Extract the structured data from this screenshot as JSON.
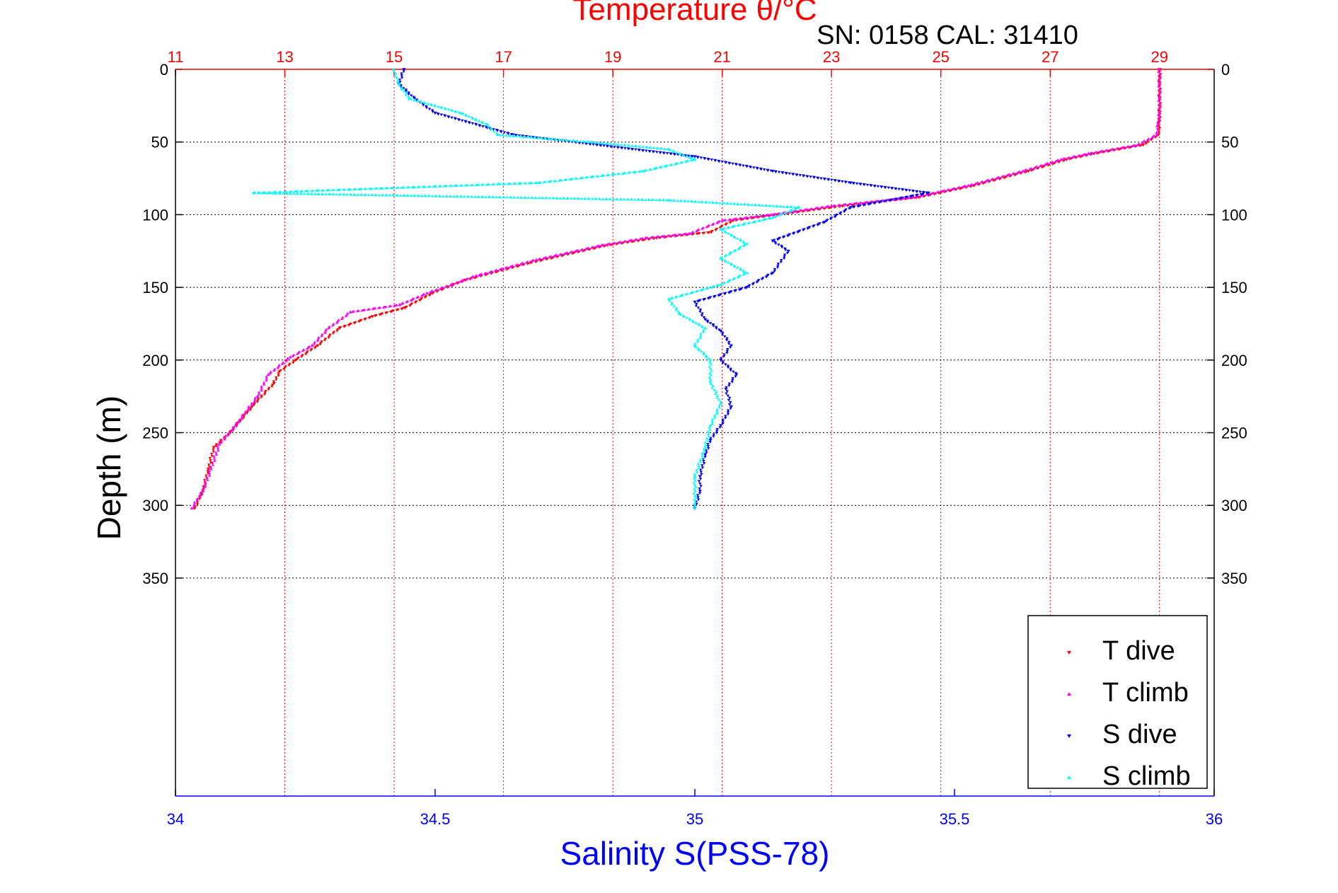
{
  "chart_data": {
    "type": "scatter",
    "title": "Temperature θ/°C",
    "subtitle": "SN: 0158  CAL: 31410",
    "xlabel_top": "Temperature θ/°C",
    "xlabel_bottom": "Salinity S(PSS-78)",
    "ylabel": "Depth (m)",
    "temperature_axis": {
      "range": [
        11,
        30
      ],
      "ticks": [
        "11",
        "13",
        "15",
        "17",
        "19",
        "21",
        "23",
        "25",
        "27",
        "29"
      ]
    },
    "salinity_axis": {
      "range": [
        34,
        36
      ],
      "ticks": [
        "34",
        "34.5",
        "35",
        "35.5",
        "36"
      ]
    },
    "depth_axis": {
      "range": [
        0,
        500
      ],
      "reversed": true,
      "ticks": [
        "0",
        "50",
        "100",
        "150",
        "200",
        "250",
        "300",
        "350"
      ]
    },
    "grid": true,
    "legend_position": "bottom-right",
    "series": [
      {
        "name": "T dive",
        "axis": "temperature",
        "color": "#ff0000",
        "marker": "triangle-down",
        "points": [
          [
            29.0,
            0
          ],
          [
            29.0,
            10
          ],
          [
            29.0,
            20
          ],
          [
            29.0,
            30
          ],
          [
            28.98,
            45
          ],
          [
            28.7,
            52
          ],
          [
            27.8,
            58
          ],
          [
            27.3,
            62
          ],
          [
            26.6,
            70
          ],
          [
            25.6,
            80
          ],
          [
            24.6,
            88
          ],
          [
            23.2,
            94
          ],
          [
            22.0,
            100
          ],
          [
            21.2,
            104
          ],
          [
            20.8,
            112
          ],
          [
            19.8,
            116
          ],
          [
            18.9,
            121
          ],
          [
            17.5,
            133
          ],
          [
            16.3,
            145
          ],
          [
            15.7,
            154
          ],
          [
            15.2,
            164
          ],
          [
            14.6,
            170
          ],
          [
            14.0,
            178
          ],
          [
            13.6,
            190
          ],
          [
            13.2,
            200
          ],
          [
            12.9,
            208
          ],
          [
            12.8,
            216
          ],
          [
            12.4,
            232
          ],
          [
            12.0,
            250
          ],
          [
            11.7,
            260
          ],
          [
            11.6,
            275
          ],
          [
            11.5,
            290
          ],
          [
            11.35,
            302
          ]
        ]
      },
      {
        "name": "T climb",
        "axis": "temperature",
        "color": "#ff00ff",
        "marker": "triangle-up",
        "points": [
          [
            29.0,
            0
          ],
          [
            29.0,
            10
          ],
          [
            29.0,
            20
          ],
          [
            29.0,
            30
          ],
          [
            28.95,
            45
          ],
          [
            28.6,
            52
          ],
          [
            27.7,
            58
          ],
          [
            27.2,
            62
          ],
          [
            26.5,
            70
          ],
          [
            25.5,
            80
          ],
          [
            24.5,
            88
          ],
          [
            23.0,
            94
          ],
          [
            21.9,
            100
          ],
          [
            21.0,
            104
          ],
          [
            20.4,
            113
          ],
          [
            19.6,
            116
          ],
          [
            18.8,
            121
          ],
          [
            17.6,
            131
          ],
          [
            16.5,
            142
          ],
          [
            15.6,
            154
          ],
          [
            15.1,
            162
          ],
          [
            14.2,
            167
          ],
          [
            13.8,
            178
          ],
          [
            13.5,
            190
          ],
          [
            13.1,
            198
          ],
          [
            12.7,
            210
          ],
          [
            12.5,
            225
          ],
          [
            12.1,
            245
          ],
          [
            11.8,
            258
          ],
          [
            11.65,
            275
          ],
          [
            11.5,
            290
          ],
          [
            11.3,
            302
          ]
        ]
      },
      {
        "name": "S dive",
        "axis": "salinity",
        "color": "#0000ff",
        "marker": "triangle-down",
        "points": [
          [
            34.44,
            0
          ],
          [
            34.43,
            10
          ],
          [
            34.46,
            20
          ],
          [
            34.5,
            30
          ],
          [
            34.6,
            40
          ],
          [
            34.65,
            45
          ],
          [
            35.0,
            60
          ],
          [
            35.15,
            70
          ],
          [
            35.3,
            78
          ],
          [
            35.45,
            85
          ],
          [
            35.3,
            95
          ],
          [
            35.25,
            105
          ],
          [
            35.15,
            118
          ],
          [
            35.18,
            125
          ],
          [
            35.15,
            140
          ],
          [
            35.1,
            150
          ],
          [
            35.0,
            160
          ],
          [
            35.02,
            172
          ],
          [
            35.05,
            180
          ],
          [
            35.07,
            190
          ],
          [
            35.05,
            200
          ],
          [
            35.08,
            210
          ],
          [
            35.06,
            220
          ],
          [
            35.07,
            232
          ],
          [
            35.05,
            245
          ],
          [
            35.03,
            255
          ],
          [
            35.02,
            265
          ],
          [
            35.01,
            280
          ],
          [
            35.01,
            290
          ],
          [
            35.0,
            302
          ]
        ]
      },
      {
        "name": "S climb",
        "axis": "salinity",
        "color": "#00ffff",
        "marker": "triangle-up",
        "points": [
          [
            34.42,
            0
          ],
          [
            34.43,
            10
          ],
          [
            34.45,
            20
          ],
          [
            34.55,
            30
          ],
          [
            34.6,
            38
          ],
          [
            34.62,
            45
          ],
          [
            34.8,
            50
          ],
          [
            34.95,
            55
          ],
          [
            35.0,
            62
          ],
          [
            34.9,
            70
          ],
          [
            34.7,
            78
          ],
          [
            34.15,
            85
          ],
          [
            34.95,
            90
          ],
          [
            35.2,
            95
          ],
          [
            35.15,
            102
          ],
          [
            35.05,
            110
          ],
          [
            35.1,
            120
          ],
          [
            35.05,
            130
          ],
          [
            35.1,
            140
          ],
          [
            35.05,
            148
          ],
          [
            34.95,
            158
          ],
          [
            34.97,
            168
          ],
          [
            35.02,
            178
          ],
          [
            35.0,
            190
          ],
          [
            35.03,
            200
          ],
          [
            35.03,
            215
          ],
          [
            35.05,
            230
          ],
          [
            35.03,
            245
          ],
          [
            35.02,
            260
          ],
          [
            35.0,
            280
          ],
          [
            35.0,
            302
          ]
        ]
      }
    ]
  }
}
